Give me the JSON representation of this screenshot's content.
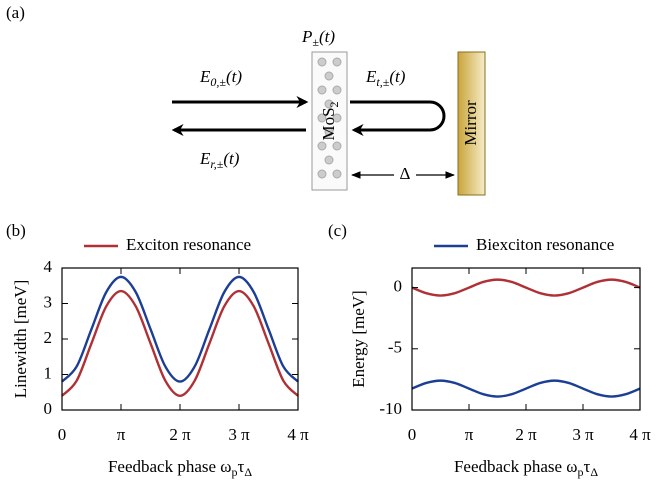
{
  "diagram": {
    "panel": "(a)",
    "polarization": [
      "P",
      "±",
      "(t)"
    ],
    "incident": [
      "E",
      "0,±",
      "(t)"
    ],
    "transmitted": [
      "E",
      "t,±",
      "(t)"
    ],
    "reflected": [
      "E",
      "r,±",
      "(t)"
    ],
    "material": [
      "MoS",
      "2"
    ],
    "distance": "Δ",
    "mirror": "Mirror"
  },
  "chart_data": [
    {
      "type": "line",
      "panel": "(b)",
      "ylabel": "Linewidth [meV]",
      "xlabel": [
        "Feedback phase ω",
        "p",
        "τ",
        "Δ"
      ],
      "x": [
        0,
        0.7854,
        1.5708,
        2.3562,
        3.1416,
        3.927,
        4.7124,
        5.4978,
        6.2832,
        7.0686,
        7.854,
        8.6394,
        9.4248,
        10.2102,
        10.9956,
        11.781,
        12.5664
      ],
      "xlim": [
        0,
        12.5664
      ],
      "xticks": [
        0,
        {
          "value": 3.1416,
          "label": "π"
        },
        {
          "value": 6.2832,
          "label": "2 π"
        },
        {
          "value": 9.4248,
          "label": "3 π"
        },
        {
          "value": 12.5664,
          "label": "4 π"
        }
      ],
      "ylim": [
        0,
        4
      ],
      "yticks": [
        0,
        1,
        2,
        3,
        4
      ],
      "series": [
        {
          "name": "Exciton resonance",
          "color": "#b03035",
          "values": [
            0.4,
            0.83,
            1.88,
            2.92,
            3.35,
            2.92,
            1.88,
            0.83,
            0.4,
            0.83,
            1.88,
            2.92,
            3.35,
            2.92,
            1.88,
            0.83,
            0.4
          ]
        },
        {
          "color": "#1c3f95",
          "values": [
            0.8,
            1.23,
            2.28,
            3.32,
            3.75,
            3.32,
            2.28,
            1.23,
            0.8,
            1.23,
            2.28,
            3.32,
            3.75,
            3.32,
            2.28,
            1.23,
            0.8
          ]
        }
      ]
    },
    {
      "type": "line",
      "panel": "(c)",
      "ylabel": "Energy [meV]",
      "xlabel": [
        "Feedback phase  ω",
        "p",
        "τ",
        "Δ"
      ],
      "x": [
        0,
        0.7854,
        1.5708,
        2.3562,
        3.1416,
        3.927,
        4.7124,
        5.4978,
        6.2832,
        7.0686,
        7.854,
        8.6394,
        9.4248,
        10.2102,
        10.9956,
        11.781,
        12.5664
      ],
      "xlim": [
        0,
        12.5664
      ],
      "xticks": [
        0,
        {
          "value": 3.1416,
          "label": "π"
        },
        {
          "value": 6.2832,
          "label": "2 π"
        },
        {
          "value": 9.4248,
          "label": "3 π"
        },
        {
          "value": 12.5664,
          "label": "4 π"
        }
      ],
      "ylim": [
        -10,
        1.6
      ],
      "yticks": [
        0,
        -5,
        -10
      ],
      "series": [
        {
          "color": "#b03035",
          "values": [
            0,
            -0.46,
            -0.65,
            -0.46,
            0,
            0.46,
            0.65,
            0.46,
            0,
            -0.46,
            -0.65,
            -0.46,
            0,
            0.46,
            0.65,
            0.46,
            0
          ]
        },
        {
          "name": "Biexciton resonance",
          "color": "#1c3f95",
          "values": [
            -8.25,
            -7.79,
            -7.6,
            -7.79,
            -8.25,
            -8.71,
            -8.9,
            -8.71,
            -8.25,
            -7.79,
            -7.6,
            -7.79,
            -8.25,
            -8.71,
            -8.9,
            -8.71,
            -8.25
          ]
        }
      ]
    }
  ]
}
